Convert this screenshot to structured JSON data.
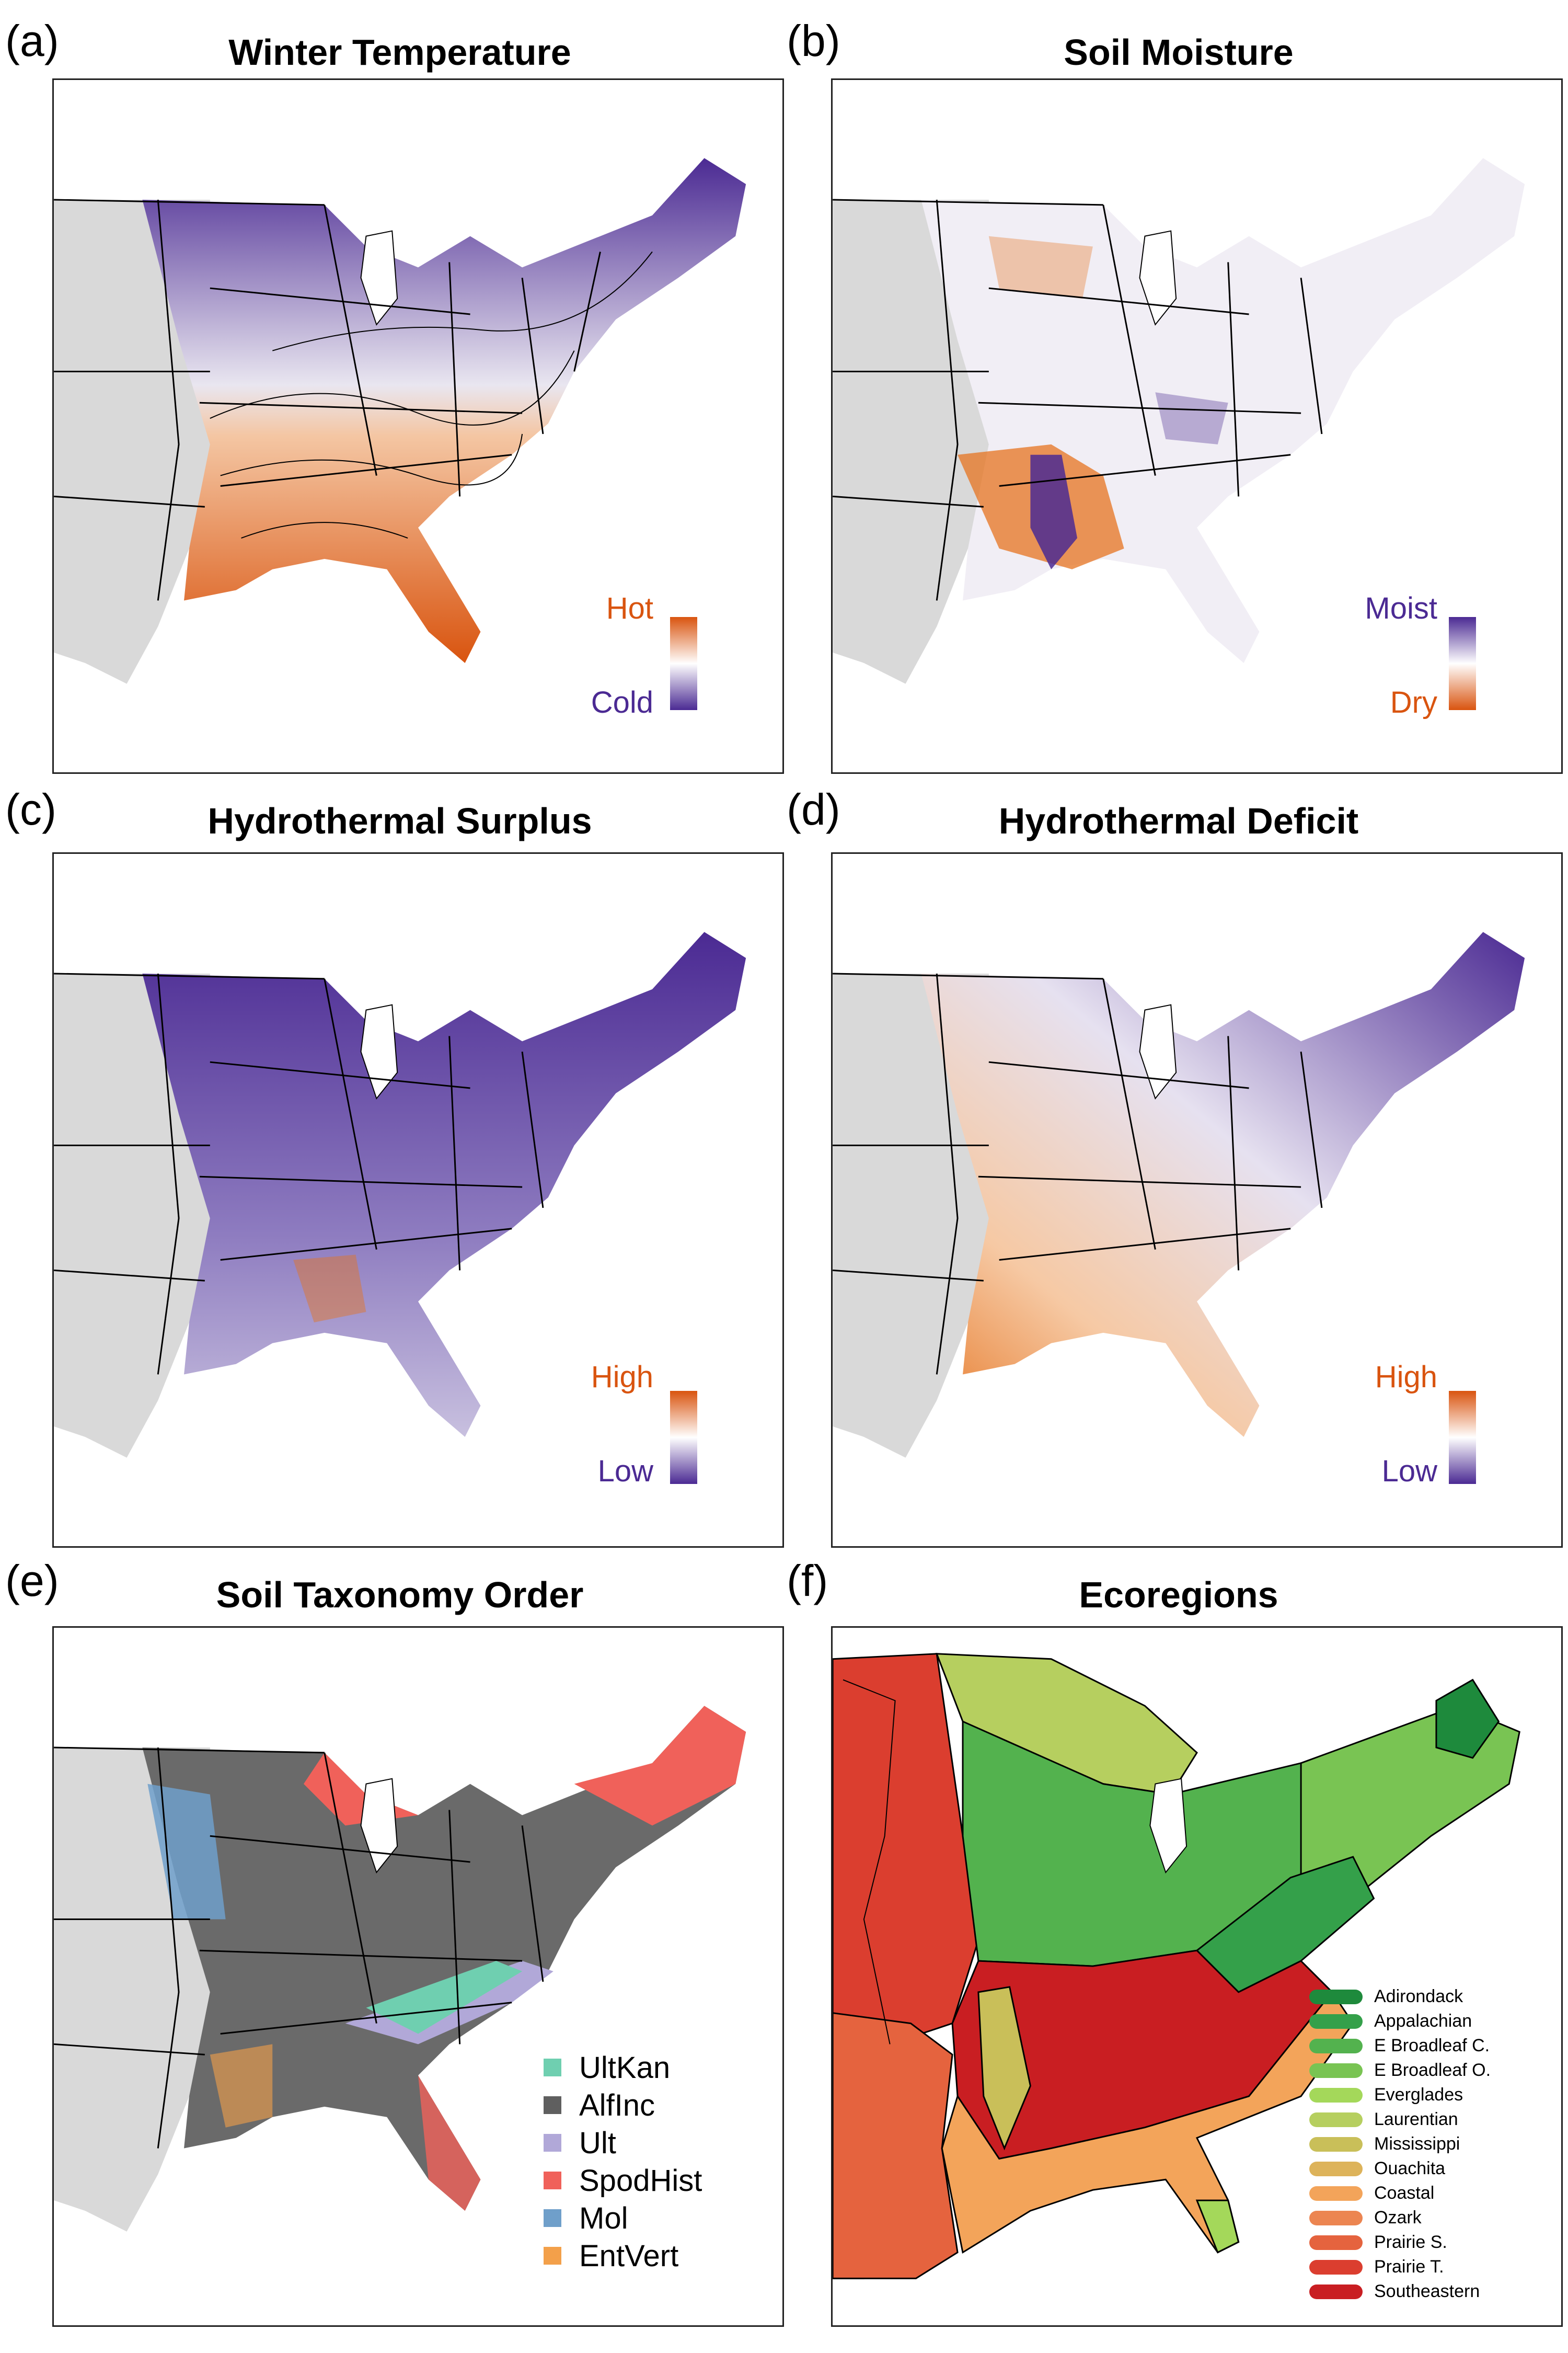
{
  "panels": {
    "a": {
      "letter": "(a)",
      "title": "Winter Temperature",
      "scale_high": "Hot",
      "scale_low": "Cold"
    },
    "b": {
      "letter": "(b)",
      "title": "Soil Moisture",
      "scale_high": "Moist",
      "scale_low": "Dry"
    },
    "c": {
      "letter": "(c)",
      "title": "Hydrothermal Surplus",
      "scale_high": "High",
      "scale_low": "Low"
    },
    "d": {
      "letter": "(d)",
      "title": "Hydrothermal Deficit",
      "scale_high": "High",
      "scale_low": "Low"
    },
    "e": {
      "letter": "(e)",
      "title": "Soil Taxonomy Order",
      "legend": [
        {
          "label": "UltKan",
          "color": "#6fcfb0"
        },
        {
          "label": "AlfInc",
          "color": "#5f5f5f"
        },
        {
          "label": "Ult",
          "color": "#b1a8d8"
        },
        {
          "label": "SpodHist",
          "color": "#f0615a"
        },
        {
          "label": "Mol",
          "color": "#6f9fca"
        },
        {
          "label": "EntVert",
          "color": "#f3a04a"
        }
      ]
    },
    "f": {
      "letter": "(f)",
      "title": "Ecoregions",
      "legend": [
        {
          "label": "Adirondack",
          "color": "#1e8a3c"
        },
        {
          "label": "Appalachian",
          "color": "#34a04a"
        },
        {
          "label": "E Broadleaf C.",
          "color": "#53b24e"
        },
        {
          "label": "E Broadleaf O.",
          "color": "#79c453"
        },
        {
          "label": "Everglades",
          "color": "#a4d85a"
        },
        {
          "label": "Laurentian",
          "color": "#b6cf5f"
        },
        {
          "label": "Mississippi",
          "color": "#c9bf59"
        },
        {
          "label": "Ouachita",
          "color": "#ddb35a"
        },
        {
          "label": "Coastal",
          "color": "#f3a45a"
        },
        {
          "label": "Ozark",
          "color": "#ec8551"
        },
        {
          "label": "Prairie S.",
          "color": "#e5633e"
        },
        {
          "label": "Prairie T.",
          "color": "#db3e2f"
        },
        {
          "label": "Southeastern",
          "color": "#c91e22"
        }
      ]
    }
  },
  "colors": {
    "cold": "#4b2a93",
    "hot": "#d9540f",
    "land_gray": "#d9d9d9",
    "state_line": "#000000"
  }
}
